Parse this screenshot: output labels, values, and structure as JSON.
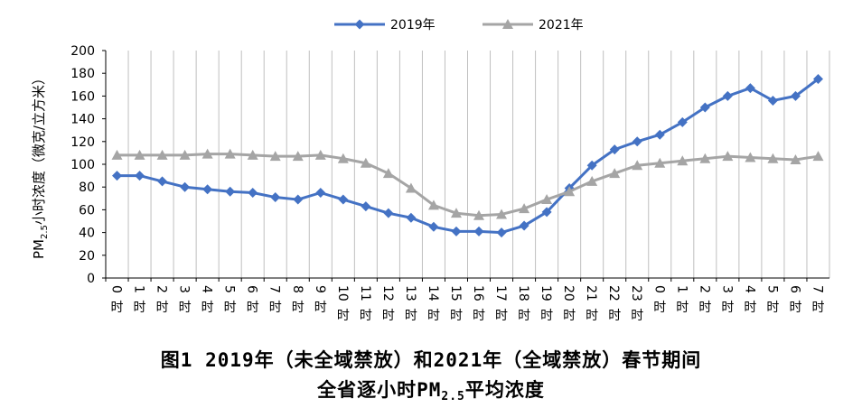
{
  "chart_data": {
    "type": "line",
    "categories": [
      "0时",
      "1时",
      "2时",
      "3时",
      "4时",
      "5时",
      "6时",
      "7时",
      "8时",
      "9时",
      "10时",
      "11时",
      "12时",
      "13时",
      "14时",
      "15时",
      "16时",
      "17时",
      "18时",
      "19时",
      "20时",
      "21时",
      "22时",
      "23时",
      "0时",
      "1时",
      "2时",
      "3时",
      "4时",
      "5时",
      "6时",
      "7时"
    ],
    "series": [
      {
        "name": "2019年",
        "color": "#4472C4",
        "marker": "diamond",
        "values": [
          90,
          90,
          85,
          80,
          78,
          76,
          75,
          71,
          69,
          75,
          69,
          63,
          57,
          53,
          45,
          41,
          41,
          40,
          46,
          58,
          79,
          99,
          113,
          120,
          126,
          137,
          150,
          160,
          167,
          156,
          160,
          175
        ]
      },
      {
        "name": "2021年",
        "color": "#A5A5A5",
        "marker": "triangle",
        "values": [
          108,
          108,
          108,
          108,
          109,
          109,
          108,
          107,
          107,
          108,
          105,
          101,
          92,
          79,
          64,
          57,
          55,
          56,
          61,
          69,
          76,
          85,
          92,
          99,
          101,
          103,
          105,
          107,
          106,
          105,
          104,
          107
        ]
      }
    ],
    "ylabel": "PM2.5小时浓度（微克/立方米）",
    "ylabel_parts": {
      "pre": "PM",
      "sub": "2.5",
      "post": "小时浓度（微克/立方米）"
    },
    "xlabel": "",
    "ylim": [
      0,
      200
    ],
    "yticks": [
      0,
      20,
      40,
      60,
      80,
      100,
      120,
      140,
      160,
      180,
      200
    ],
    "grid": "vertical category lines",
    "legend": "top-center"
  },
  "caption": {
    "line1": "图1 2019年（未全域禁放）和2021年（全域禁放）春节期间",
    "line2_pre": "全省逐小时PM",
    "line2_sub": "2.5",
    "line2_post": "平均浓度"
  }
}
